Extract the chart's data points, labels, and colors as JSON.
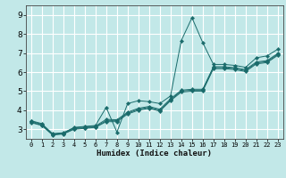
{
  "xlabel": "Humidex (Indice chaleur)",
  "bg_color": "#c2e8e8",
  "grid_color": "#ffffff",
  "line_color": "#1a6b6b",
  "marker_color": "#1a6b6b",
  "xlim": [
    -0.5,
    23.5
  ],
  "ylim": [
    2.5,
    9.5
  ],
  "xticks": [
    0,
    1,
    2,
    3,
    4,
    5,
    6,
    7,
    8,
    9,
    10,
    11,
    12,
    13,
    14,
    15,
    16,
    17,
    18,
    19,
    20,
    21,
    22,
    23
  ],
  "yticks": [
    3,
    4,
    5,
    6,
    7,
    8,
    9
  ],
  "series": [
    {
      "x": [
        0,
        1,
        2,
        3,
        4,
        5,
        6,
        7,
        8,
        9,
        10,
        11,
        12,
        13,
        14,
        15,
        16,
        17,
        18,
        19,
        20,
        21,
        22,
        23
      ],
      "y": [
        3.45,
        3.3,
        2.75,
        2.8,
        3.1,
        3.15,
        3.2,
        4.15,
        2.85,
        4.35,
        4.5,
        4.45,
        4.35,
        4.75,
        7.65,
        8.85,
        7.55,
        6.4,
        6.4,
        6.35,
        6.25,
        6.75,
        6.85,
        7.2
      ]
    },
    {
      "x": [
        0,
        1,
        2,
        3,
        4,
        5,
        6,
        7,
        8,
        9,
        10,
        11,
        12,
        13,
        14,
        15,
        16,
        17,
        18,
        19,
        20,
        21,
        22,
        23
      ],
      "y": [
        3.42,
        3.27,
        2.77,
        2.82,
        3.07,
        3.12,
        3.17,
        3.52,
        3.5,
        3.9,
        4.1,
        4.2,
        4.05,
        4.6,
        5.05,
        5.1,
        5.1,
        6.28,
        6.28,
        6.23,
        6.13,
        6.53,
        6.6,
        6.98
      ]
    },
    {
      "x": [
        0,
        1,
        2,
        3,
        4,
        5,
        6,
        7,
        8,
        9,
        10,
        11,
        12,
        13,
        14,
        15,
        16,
        17,
        18,
        19,
        20,
        21,
        22,
        23
      ],
      "y": [
        3.38,
        3.22,
        2.73,
        2.78,
        3.03,
        3.08,
        3.13,
        3.45,
        3.45,
        3.85,
        4.05,
        4.15,
        4.0,
        4.55,
        5.0,
        5.05,
        5.05,
        6.23,
        6.23,
        6.18,
        6.08,
        6.48,
        6.55,
        6.93
      ]
    },
    {
      "x": [
        0,
        1,
        2,
        3,
        4,
        5,
        6,
        7,
        8,
        9,
        10,
        11,
        12,
        13,
        14,
        15,
        16,
        17,
        18,
        19,
        20,
        21,
        22,
        23
      ],
      "y": [
        3.35,
        3.2,
        2.7,
        2.75,
        3.0,
        3.05,
        3.1,
        3.4,
        3.4,
        3.8,
        4.0,
        4.1,
        3.95,
        4.5,
        4.95,
        5.0,
        5.0,
        6.18,
        6.18,
        6.13,
        6.03,
        6.43,
        6.5,
        6.88
      ]
    }
  ]
}
